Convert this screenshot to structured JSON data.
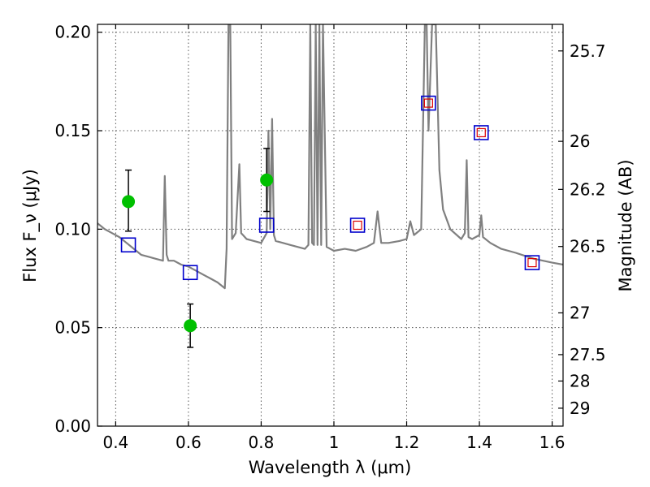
{
  "chart_data": {
    "type": "scatter",
    "title": "",
    "xlabel": "Wavelength λ (μm)",
    "ylabel": "Flux F_ν (μJy)",
    "y2label": "Magnitude (AB)",
    "xlim": [
      0.35,
      1.63
    ],
    "ylim": [
      0.0,
      0.204
    ],
    "grid": true,
    "x_ticks": [
      0.4,
      0.6,
      0.8,
      1.0,
      1.2,
      1.4,
      1.6
    ],
    "x_tick_labels": [
      "0.4",
      "0.6",
      "0.8",
      "1",
      "1.2",
      "1.4",
      "1.6"
    ],
    "y_ticks": [
      0.0,
      0.05,
      0.1,
      0.15,
      0.2
    ],
    "y_tick_labels": [
      "0.00",
      "0.05",
      "0.10",
      "0.15",
      "0.20"
    ],
    "y2_ticks": [
      {
        "label": "25.7",
        "flux": 0.1905
      },
      {
        "label": "26",
        "flux": 0.1446
      },
      {
        "label": "26.2",
        "flux": 0.1202
      },
      {
        "label": "26.5",
        "flux": 0.0912
      },
      {
        "label": "27",
        "flux": 0.0575
      },
      {
        "label": "27.5",
        "flux": 0.0363
      },
      {
        "label": "28",
        "flux": 0.0229
      },
      {
        "label": "29",
        "flux": 0.0091
      }
    ],
    "colors": {
      "template": "#808080",
      "observed": "#00c000",
      "model_box": "#0000cc",
      "model_box_inner": "#dd0000",
      "errorbar": "#000000"
    },
    "series": [
      {
        "kind": "line",
        "x": [
          0.35,
          0.37,
          0.39,
          0.41,
          0.43,
          0.45,
          0.47,
          0.49,
          0.51,
          0.53,
          0.535,
          0.54,
          0.545,
          0.56,
          0.58,
          0.6,
          0.62,
          0.64,
          0.66,
          0.68,
          0.7,
          0.705,
          0.71,
          0.715,
          0.72,
          0.73,
          0.74,
          0.745,
          0.75,
          0.76,
          0.78,
          0.8,
          0.815,
          0.82,
          0.825,
          0.83,
          0.835,
          0.84,
          0.86,
          0.88,
          0.9,
          0.92,
          0.93,
          0.935,
          0.94,
          0.945,
          0.95,
          0.955,
          0.96,
          0.965,
          0.97,
          0.98,
          1.0,
          1.03,
          1.06,
          1.09,
          1.11,
          1.12,
          1.13,
          1.15,
          1.18,
          1.2,
          1.21,
          1.22,
          1.24,
          1.25,
          1.255,
          1.26,
          1.27,
          1.275,
          1.28,
          1.29,
          1.3,
          1.32,
          1.35,
          1.36,
          1.365,
          1.37,
          1.38,
          1.4,
          1.405,
          1.41,
          1.43,
          1.46,
          1.5,
          1.55,
          1.6,
          1.63
        ],
        "y": [
          0.103,
          0.1,
          0.098,
          0.096,
          0.093,
          0.09,
          0.087,
          0.086,
          0.085,
          0.084,
          0.127,
          0.087,
          0.084,
          0.084,
          0.082,
          0.081,
          0.079,
          0.077,
          0.075,
          0.073,
          0.07,
          0.09,
          0.204,
          0.204,
          0.095,
          0.098,
          0.133,
          0.098,
          0.097,
          0.095,
          0.094,
          0.093,
          0.098,
          0.15,
          0.1,
          0.156,
          0.097,
          0.094,
          0.093,
          0.092,
          0.091,
          0.09,
          0.092,
          0.204,
          0.093,
          0.092,
          0.204,
          0.092,
          0.204,
          0.092,
          0.204,
          0.091,
          0.089,
          0.09,
          0.089,
          0.091,
          0.093,
          0.109,
          0.093,
          0.093,
          0.094,
          0.095,
          0.104,
          0.097,
          0.1,
          0.204,
          0.204,
          0.15,
          0.204,
          0.204,
          0.204,
          0.13,
          0.11,
          0.1,
          0.095,
          0.098,
          0.135,
          0.096,
          0.095,
          0.097,
          0.107,
          0.096,
          0.093,
          0.09,
          0.088,
          0.085,
          0.083,
          0.082
        ]
      },
      {
        "kind": "errorbar",
        "x": [
          0.435,
          0.605,
          0.815
        ],
        "y": [
          0.114,
          0.051,
          0.125
        ],
        "yerr_low": [
          0.015,
          0.011,
          0.016
        ],
        "yerr_high": [
          0.016,
          0.011,
          0.016
        ]
      },
      {
        "kind": "markers",
        "x": [
          0.435,
          0.605,
          0.815,
          1.065,
          1.26,
          1.405,
          1.545
        ],
        "y": [
          0.092,
          0.078,
          0.102,
          0.102,
          0.164,
          0.149,
          0.083
        ],
        "inner": [
          false,
          false,
          false,
          true,
          true,
          true,
          true
        ]
      }
    ]
  }
}
